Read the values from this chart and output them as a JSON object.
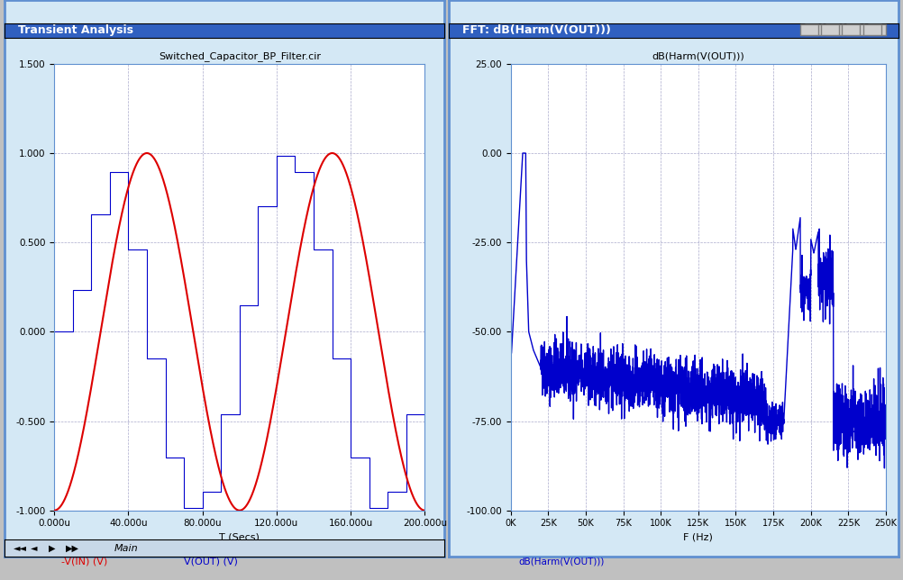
{
  "left_title": "Switched_Capacitor_BP_Filter.cir",
  "left_xlabel": "T (Secs)",
  "left_ylabel_red": "-V(IN) (V)",
  "left_ylabel_blue": "V(OUT) (V)",
  "left_xlim": [
    0,
    0.0002
  ],
  "left_ylim": [
    -1.0,
    1.5
  ],
  "left_yticks": [
    -1.0,
    -0.5,
    0.0,
    0.5,
    1.0,
    1.5
  ],
  "left_xticks": [
    0,
    4e-05,
    8e-05,
    0.00012,
    0.00016,
    0.0002
  ],
  "left_xtick_labels": [
    "0.000u",
    "40.000u",
    "80.000u",
    "120.000u",
    "160.000u",
    "200.000u"
  ],
  "left_ytick_labels": [
    "-1.000",
    "-0.500",
    "0.000",
    "0.500",
    "1.000",
    "1.500"
  ],
  "right_title": "dB(Harm(V(OUT)))",
  "right_xlabel": "F (Hz)",
  "right_ylabel": "dB(Harm(V(OUT)))",
  "right_xlim": [
    0,
    250000
  ],
  "right_ylim": [
    -100,
    25
  ],
  "right_yticks": [
    -100,
    -75.0,
    -50.0,
    -25.0,
    0.0,
    25.0
  ],
  "right_xticks": [
    0,
    25000,
    50000,
    75000,
    100000,
    125000,
    150000,
    175000,
    200000,
    225000,
    250000
  ],
  "right_xtick_labels": [
    "0K",
    "25K",
    "50K",
    "75K",
    "100K",
    "125K",
    "150K",
    "175K",
    "200K",
    "225K",
    "250K"
  ],
  "right_ytick_labels": [
    "-100.00",
    "-75.00",
    "-50.00",
    "-25.00",
    "0.00",
    "25.00"
  ],
  "sine_freq": 10000,
  "sine_amplitude": 1.0,
  "bg_color": "#d4e8f5",
  "plot_bg_color": "#ffffff",
  "grid_color": "#aaaacc",
  "line_color_red": "#dd0000",
  "line_color_blue": "#0000cc",
  "titlebar_color": "#3060c0",
  "window_border_color": "#6090d0",
  "left_window_title": "Transient Analysis",
  "right_window_title": "FFT: dB(Harm(V(OUT)))"
}
